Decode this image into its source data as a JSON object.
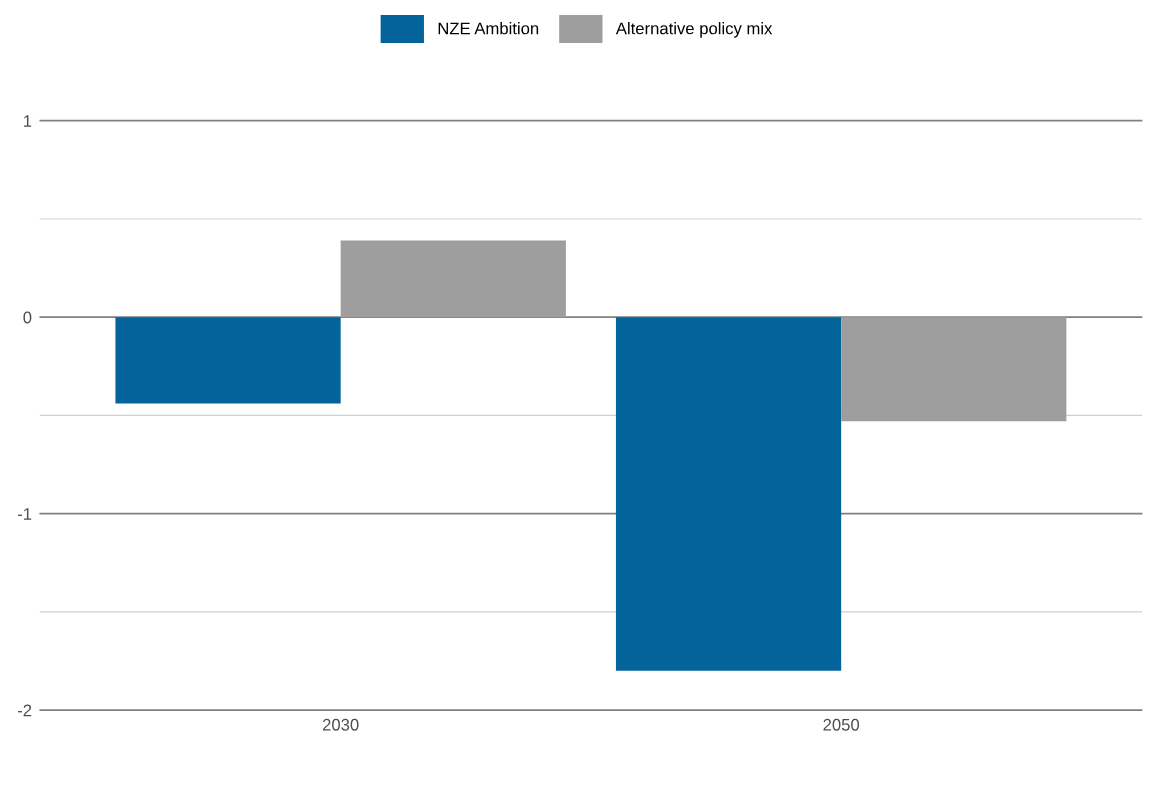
{
  "chart_data": {
    "type": "bar",
    "categories": [
      "2030",
      "2050"
    ],
    "series": [
      {
        "name": "NZE Ambition",
        "color": "#03649b",
        "values": [
          -0.44,
          -1.8
        ]
      },
      {
        "name": "Alternative policy mix",
        "color": "#9e9e9e",
        "values": [
          0.39,
          -0.53
        ]
      }
    ],
    "ylim": [
      -2,
      1
    ],
    "yticks": [
      -2,
      {
        "value": -1.5,
        "label": null
      },
      -1,
      {
        "value": -0.5,
        "label": null
      },
      0,
      {
        "value": 0.5,
        "label": null
      },
      1
    ],
    "grid": "y",
    "legend": "top"
  }
}
